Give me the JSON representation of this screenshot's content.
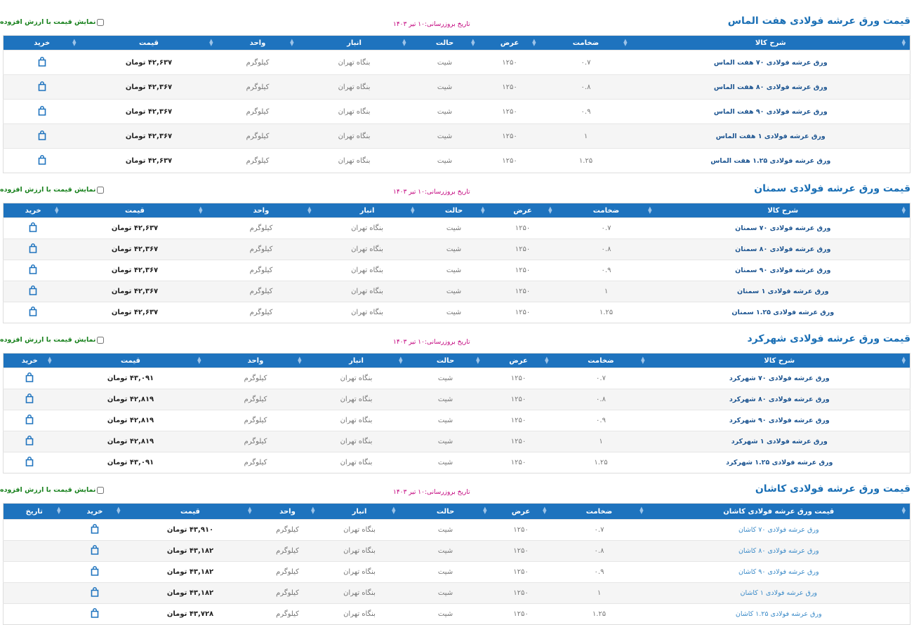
{
  "sections": [
    {
      "title": "قیمت ورق عرشه فولادی هفت الماس",
      "vat_label": "نمایش قیمت با ارزش افزوده",
      "date": "تاریخ بروزرسانی:۱۰ تیر ۱۴۰۳",
      "headers": [
        "شرح کالا",
        "ضخامت",
        "عرض",
        "حالت",
        "انبار",
        "واحد",
        "قیمت",
        "خرید"
      ],
      "rows": [
        [
          "ورق عرشه فولادی ۷۰ هفت الماس",
          "۰.۷",
          "۱۲۵۰",
          "شیت",
          "بنگاه تهران",
          "کیلوگرم",
          "۴۲,۶۳۷ تومان"
        ],
        [
          "ورق عرشه فولادی ۸۰ هفت الماس",
          "۰.۸",
          "۱۲۵۰",
          "شیت",
          "بنگاه تهران",
          "کیلوگرم",
          "۴۲,۳۶۷ تومان"
        ],
        [
          "ورق عرشه فولادی ۹۰ هفت الماس",
          "۰.۹",
          "۱۲۵۰",
          "شیت",
          "بنگاه تهران",
          "کیلوگرم",
          "۴۲,۳۶۷ تومان"
        ],
        [
          "ورق عرشه فولادی ۱ هفت الماس",
          "۱",
          "۱۲۵۰",
          "شیت",
          "بنگاه تهران",
          "کیلوگرم",
          "۴۲,۳۶۷ تومان"
        ],
        [
          "ورق عرشه فولادی ۱.۲۵ هفت الماس",
          "۱.۲۵",
          "۱۲۵۰",
          "شیت",
          "بنگاه تهران",
          "کیلوگرم",
          "۴۲,۶۳۷ تومان"
        ]
      ]
    },
    {
      "title": "قیمت ورق عرشه فولادی سمنان",
      "vat_label": "نمایش قیمت با ارزش افزوده",
      "date": "تاریخ بروزرسانی:۱۰ تیر ۱۴۰۳",
      "headers": [
        "شرح کالا",
        "ضخامت",
        "عرض",
        "حالت",
        "انبار",
        "واحد",
        "قیمت",
        "خرید"
      ],
      "rows": [
        [
          "ورق عرشه فولادی ۷۰ سمنان",
          "۰.۷",
          "۱۲۵۰",
          "شیت",
          "بنگاه تهران",
          "کیلوگرم",
          "۴۲,۶۳۷ تومان"
        ],
        [
          "ورق عرشه فولادی ۸۰ سمنان",
          "۰.۸",
          "۱۲۵۰",
          "شیت",
          "بنگاه تهران",
          "کیلوگرم",
          "۴۲,۳۶۷ تومان"
        ],
        [
          "ورق عرشه فولادی ۹۰ سمنان",
          "۰.۹",
          "۱۲۵۰",
          "شیت",
          "بنگاه تهران",
          "کیلوگرم",
          "۴۲,۳۶۷ تومان"
        ],
        [
          "ورق عرشه فولادی ۱ سمنان",
          "۱",
          "۱۲۵۰",
          "شیت",
          "بنگاه تهران",
          "کیلوگرم",
          "۴۲,۳۶۷ تومان"
        ],
        [
          "ورق عرشه فولادی ۱.۲۵ سمنان",
          "۱.۲۵",
          "۱۲۵۰",
          "شیت",
          "بنگاه تهران",
          "کیلوگرم",
          "۴۲,۶۳۷ تومان"
        ]
      ]
    },
    {
      "title": "قیمت ورق عرشه فولادی شهرکرد",
      "vat_label": "نمایش قیمت با ارزش افزوده",
      "date": "تاریخ بروزرسانی:۱۰ تیر ۱۴۰۳",
      "headers": [
        "شرح کالا",
        "ضخامت",
        "عرض",
        "حالت",
        "انبار",
        "واحد",
        "قیمت",
        "خرید"
      ],
      "rows": [
        [
          "ورق عرشه فولادی ۷۰ شهرکرد",
          "۰.۷",
          "۱۲۵۰",
          "شیت",
          "بنگاه تهران",
          "کیلوگرم",
          "۴۳,۰۹۱ تومان"
        ],
        [
          "ورق عرشه فولادی ۸۰ شهرکرد",
          "۰.۸",
          "۱۲۵۰",
          "شیت",
          "بنگاه تهران",
          "کیلوگرم",
          "۴۲,۸۱۹ تومان"
        ],
        [
          "ورق عرشه فولادی ۹۰ شهرکرد",
          "۰.۹",
          "۱۲۵۰",
          "شیت",
          "بنگاه تهران",
          "کیلوگرم",
          "۴۲,۸۱۹ تومان"
        ],
        [
          "ورق عرشه فولادی ۱ شهرکرد",
          "۱",
          "۱۲۵۰",
          "شیت",
          "بنگاه تهران",
          "کیلوگرم",
          "۴۲,۸۱۹ تومان"
        ],
        [
          "ورق عرشه فولادی ۱.۲۵ شهرکرد",
          "۱.۲۵",
          "۱۲۵۰",
          "شیت",
          "بنگاه تهران",
          "کیلوگرم",
          "۴۳,۰۹۱ تومان"
        ]
      ]
    },
    {
      "title": "قیمت ورق عرشه فولادی کاشان",
      "vat_label": "نمایش قیمت با ارزش افزوده",
      "date": "تاریخ بروزرسانی:۱۰ تیر ۱۴۰۳",
      "headers": [
        "قیمت ورق عرشه فولادی کاشان",
        "ضخامت",
        "عرض",
        "حالت",
        "انبار",
        "واحد",
        "قیمت",
        "خرید",
        "تاریخ"
      ],
      "rows": [
        [
          "ورق عرشه فولادی ۷۰ کاشان",
          "۰.۷",
          "۱۲۵۰",
          "شیت",
          "بنگاه تهران",
          "کیلوگرم",
          "۴۳,۹۱۰ تومان"
        ],
        [
          "ورق عرشه فولادی ۸۰ کاشان",
          "۰.۸",
          "۱۲۵۰",
          "شیت",
          "بنگاه تهران",
          "کیلوگرم",
          "۴۳,۱۸۲ تومان"
        ],
        [
          "ورق عرشه فولادی ۹۰ کاشان",
          "۰.۹",
          "۱۲۵۰",
          "شیت",
          "بنگاه تهران",
          "کیلوگرم",
          "۴۳,۱۸۲ تومان"
        ],
        [
          "ورق عرشه فولادی ۱ کاشان",
          "۱",
          "۱۲۵۰",
          "شیت",
          "بنگاه تهران",
          "کیلوگرم",
          "۴۳,۱۸۲ تومان"
        ],
        [
          "ورق عرشه فولادی ۱.۲۵ کاشان",
          "۱.۲۵",
          "۱۲۵۰",
          "شیت",
          "بنگاه تهران",
          "کیلوگرم",
          "۴۳,۷۲۸ تومان"
        ]
      ]
    }
  ]
}
